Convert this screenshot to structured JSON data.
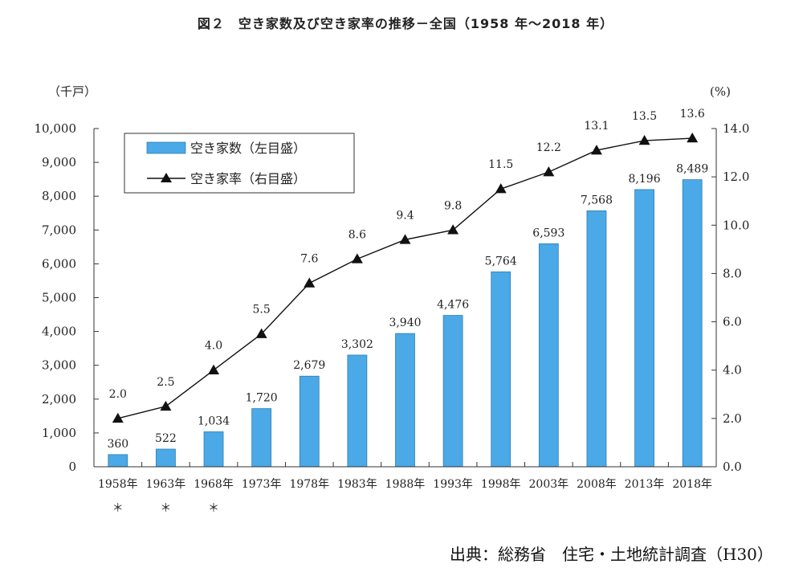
{
  "title": "図２　空き家数及び空き家率の推移－全国（1958 年～2018 年）",
  "source": "出典：総務省　住宅・土地統計調査（H30）",
  "colors": {
    "bar": "#4aa9e6",
    "bar_stroke": "#2f7fb4",
    "line": "#111111"
  },
  "chart_data": {
    "type": "bar+line",
    "title": "図２　空き家数及び空き家率の推移－全国（1958 年～2018 年）",
    "left_axis_unit": "（千戸）",
    "right_axis_unit": "(%)",
    "left_ylim": [
      0,
      10000
    ],
    "right_ylim": [
      0.0,
      14.0
    ],
    "left_ticks": [
      "0",
      "1,000",
      "2,000",
      "3,000",
      "4,000",
      "5,000",
      "6,000",
      "7,000",
      "8,000",
      "9,000",
      "10,000"
    ],
    "right_ticks": [
      "0.0",
      "2.0",
      "4.0",
      "6.0",
      "8.0",
      "10.0",
      "12.0",
      "14.0"
    ],
    "categories": [
      "1958年",
      "1963年",
      "1968年",
      "1973年",
      "1978年",
      "1983年",
      "1988年",
      "1993年",
      "1998年",
      "2003年",
      "2008年",
      "2013年",
      "2018年"
    ],
    "asterisks": [
      "＊",
      "＊",
      "＊",
      "",
      "",
      "",
      "",
      "",
      "",
      "",
      "",
      "",
      ""
    ],
    "grid": false,
    "legend_position": "top-left",
    "series": [
      {
        "name": "空き家数（左目盛）",
        "type": "bar",
        "axis": "left",
        "values": [
          360,
          522,
          1034,
          1720,
          2679,
          3302,
          3940,
          4476,
          5764,
          6593,
          7568,
          8196,
          8489
        ],
        "labels": [
          "360",
          "522",
          "1,034",
          "1,720",
          "2,679",
          "3,302",
          "3,940",
          "4,476",
          "5,764",
          "6,593",
          "7,568",
          "8,196",
          "8,489"
        ]
      },
      {
        "name": "空き家率（右目盛）",
        "type": "line",
        "axis": "right",
        "values": [
          2.0,
          2.5,
          4.0,
          5.5,
          7.6,
          8.6,
          9.4,
          9.8,
          11.5,
          12.2,
          13.1,
          13.5,
          13.6
        ],
        "labels": [
          "2.0",
          "2.5",
          "4.0",
          "5.5",
          "7.6",
          "8.6",
          "9.4",
          "9.8",
          "11.5",
          "12.2",
          "13.1",
          "13.5",
          "13.6"
        ]
      }
    ]
  }
}
